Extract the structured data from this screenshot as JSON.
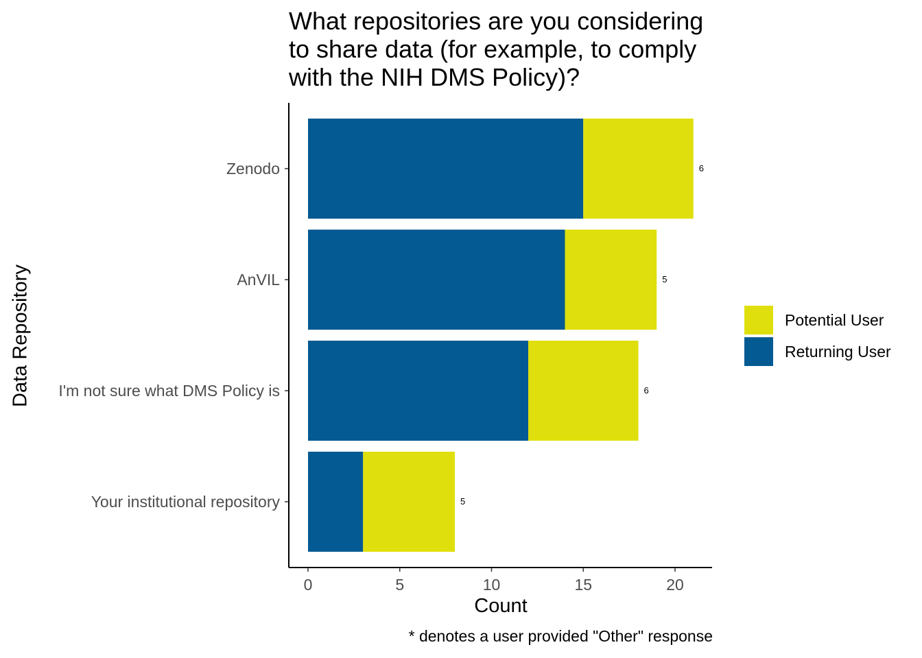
{
  "chart_data": {
    "type": "bar",
    "orientation": "horizontal",
    "stacked": true,
    "title": "What repositories are you considering\nto share data (for example, to comply\nwith the NIH DMS Policy)?",
    "xlabel": "Count",
    "ylabel": "Data Repository",
    "caption": "* denotes a user provided \"Other\" response",
    "categories": [
      "Zenodo",
      "AnVIL",
      "I'm not sure what DMS Policy is",
      "Your institutional repository"
    ],
    "series": [
      {
        "name": "Returning User",
        "color": "#045a92",
        "values": [
          15,
          14,
          12,
          3
        ]
      },
      {
        "name": "Potential User",
        "color": "#dfdf0d",
        "values": [
          6,
          5,
          6,
          5
        ]
      }
    ],
    "xticks": [
      "0",
      "5",
      "10",
      "15",
      "20"
    ],
    "xlim": [
      0,
      21.5
    ],
    "legend": {
      "placement": "right",
      "order": [
        "Potential User",
        "Returning User"
      ]
    },
    "grid": false
  }
}
